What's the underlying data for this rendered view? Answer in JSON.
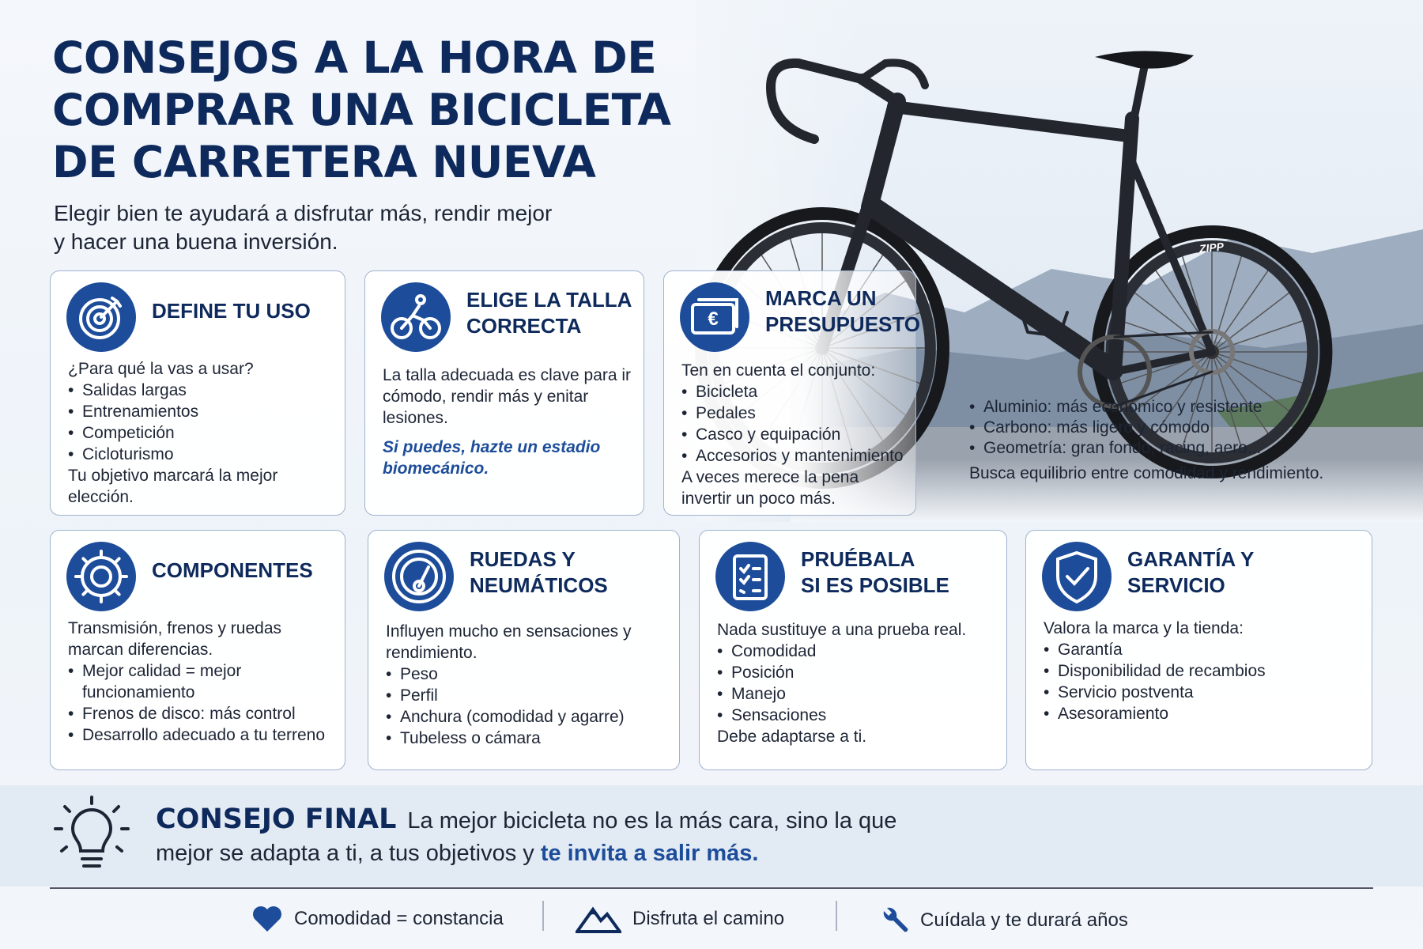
{
  "header": {
    "title_lines": [
      "CONSEJOS A LA HORA DE",
      "COMPRAR UNA BICICLETA",
      "DE CARRETERA NUEVA"
    ],
    "subtitle_lines": [
      "Elegir bien te ayudará a disfrutar más, rendir mejor",
      "y hacer una buena inversión."
    ]
  },
  "cards": [
    {
      "title_lines": [
        "DEFINE TU USO"
      ],
      "intro": "¿Para qué la vas a usar?",
      "bullets": [
        "Salidas largas",
        "Entrenamientos",
        "Competición",
        "Cicloturismo"
      ],
      "note": "Tu objetivo marcará la mejor elección."
    },
    {
      "title_lines": [
        "ELIGE LA TALLA",
        "CORRECTA"
      ],
      "intro": "La talla adecuada es clave para ir cómodo, rendir más y enitar lesiones.",
      "highlight": "Si puedes, hazte un estadio biomecánico."
    },
    {
      "title_lines": [
        "MARCA UN",
        "PRESUPUESTO"
      ],
      "intro": "Ten en cuenta el conjunto:",
      "bullets": [
        "Bicicleta",
        "Pedales",
        "Casco y equipación",
        "Accesorios y mantenimiento"
      ],
      "note": "A veces merece la pena invertir un poco más."
    },
    {
      "title_lines": [
        "COMPONENTES"
      ],
      "intro": "Transmisión, frenos y ruedas marcan diferencias.",
      "bullets": [
        "Mejor calidad = mejor funcionamiento",
        "Frenos de disco: más control",
        "Desarrollo adecuado a tu terreno"
      ]
    },
    {
      "title_lines": [
        "RUEDAS Y",
        "NEUMÁTICOS"
      ],
      "intro": "Influyen mucho en sensaciones y rendimiento.",
      "bullets": [
        "Peso",
        "Perfil",
        "Anchura (comodidad y agarre)",
        "Tubeless o cámara"
      ]
    },
    {
      "title_lines": [
        "PRUÉBALA",
        "SI ES POSIBLE"
      ],
      "intro": "Nada sustituye a una prueba real.",
      "bullets": [
        "Comodidad",
        "Posición",
        "Manejo",
        "Sensaciones"
      ],
      "note": "Debe adaptarse a ti."
    },
    {
      "title_lines": [
        "GARANTÍA Y",
        "SERVICIO"
      ],
      "intro": "Valora la marca y la tienda:",
      "bullets": [
        "Garantía",
        "Disponibilidad de recambios",
        "Servicio postventa",
        "Asesoramiento"
      ]
    }
  ],
  "materials": {
    "bullets": [
      "Aluminio: más económico y resistente",
      "Carbono: más ligero y cómodo",
      "Geometría: gran fondo, racing, aero..."
    ],
    "note": "Busca equilibrio entre comodidad y rendimiento."
  },
  "bike": {
    "rim_label": "ZIPP"
  },
  "final_tip": {
    "label": "CONSEJO FINAL",
    "text": "La mejor bicicleta no es la más cara, sino la que mejor se adapta a ti, a tus objetivos y",
    "highlight": "te invita a salir más."
  },
  "footer": [
    "Comodidad = constancia",
    "Disfruta el camino",
    "Cuídala y te durará años"
  ]
}
